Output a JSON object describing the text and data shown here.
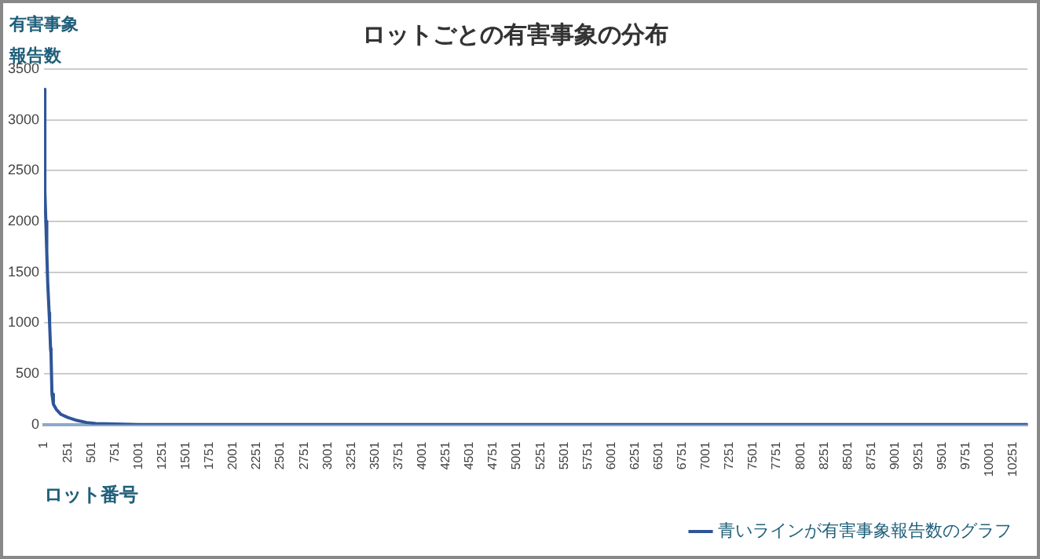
{
  "chart_data": {
    "type": "line",
    "title": "ロットごとの有害事象の分布",
    "xlabel": "ロット番号",
    "ylabel": "有害事象報告数",
    "x": [
      1,
      10,
      20,
      30,
      40,
      55,
      60,
      70,
      75,
      85,
      100,
      130,
      180,
      250,
      350,
      450,
      550,
      1000,
      2000,
      10400
    ],
    "series": [
      {
        "name": "青いラインが有害事象報告数のグラフ",
        "color": "#2f5597",
        "values": [
          3300,
          2300,
          2000,
          1700,
          1400,
          1100,
          1000,
          750,
          700,
          300,
          200,
          150,
          100,
          70,
          40,
          20,
          10,
          0,
          0,
          0
        ]
      }
    ],
    "xlim": [
      1,
      10400
    ],
    "xticks": [
      1,
      251,
      501,
      751,
      1001,
      1251,
      1501,
      1751,
      2001,
      2251,
      2501,
      2751,
      3001,
      3251,
      3501,
      3751,
      4001,
      4251,
      4501,
      4751,
      5001,
      5251,
      5501,
      5751,
      6001,
      6251,
      6501,
      6751,
      7001,
      7251,
      7501,
      7751,
      8001,
      8251,
      8501,
      8751,
      9001,
      9251,
      9501,
      9751,
      10001,
      10251
    ],
    "ylim": [
      0,
      3500
    ],
    "yticks": [
      0,
      500,
      1000,
      1500,
      2000,
      2500,
      3000,
      3500
    ],
    "grid": "y",
    "legend": "bottom",
    "marker": "none",
    "line_style": "solid"
  }
}
